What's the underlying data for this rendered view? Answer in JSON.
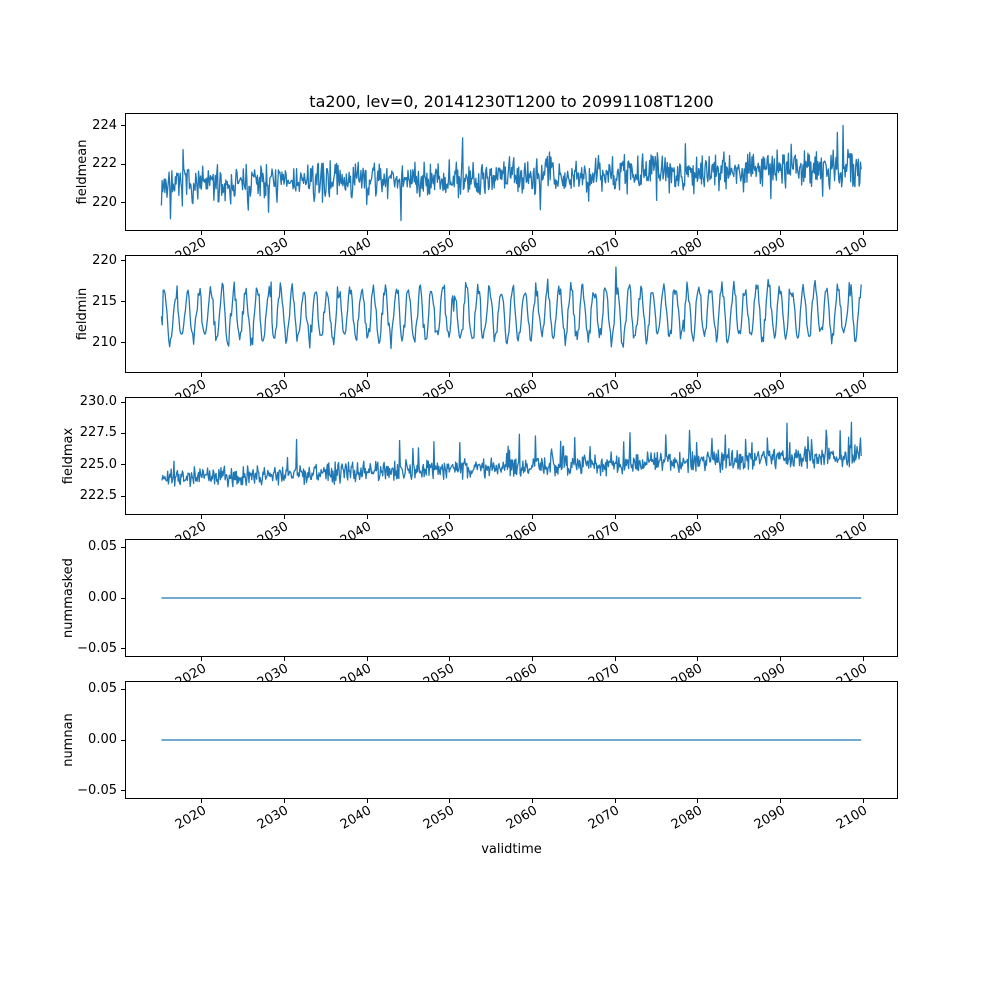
{
  "figure": {
    "title": "ta200, lev=0, 20141230T1200 to 20991108T1200",
    "xlabel": "validtime",
    "background_color": "#ffffff",
    "line_color": "#1f77b4"
  },
  "chart_data": [
    {
      "type": "line",
      "series_name": "fieldmean",
      "ylabel": "fieldmean",
      "ylim": [
        218.55,
        224.65
      ],
      "ytick_values": [
        220,
        222,
        224
      ],
      "ytick_labels": [
        "220",
        "222",
        "224"
      ],
      "xlim": [
        2010.7,
        2104.2
      ],
      "xtick_values": [
        2020,
        2030,
        2040,
        2050,
        2060,
        2070,
        2080,
        2090,
        2100
      ],
      "xtick_labels": [
        "2020",
        "2030",
        "2040",
        "2050",
        "2060",
        "2070",
        "2080",
        "2090",
        "2100"
      ],
      "x_start": 2014.99,
      "x_end": 2099.86,
      "summary": {
        "description": "Dense high-frequency noisy time series with slight upward trend",
        "approx_start_mean": 220.9,
        "approx_end_mean": 221.9,
        "approx_min": 218.8,
        "approx_max": 224.4
      },
      "generator": {
        "kind": "noisy",
        "seed": 7,
        "n": 1000,
        "base": 220.9,
        "trend": 0.95,
        "noise": 1.15,
        "spike": {
          "prob": 0.025,
          "amp": 1.2,
          "sign": 0
        },
        "clamp": [
          218.85,
          224.4
        ]
      }
    },
    {
      "type": "line",
      "series_name": "fieldmin",
      "ylabel": "fieldmin",
      "ylim": [
        206.3,
        220.7
      ],
      "ytick_values": [
        210,
        215,
        220
      ],
      "ytick_labels": [
        "210",
        "215",
        "220"
      ],
      "xlim": [
        2010.7,
        2104.2
      ],
      "xtick_values": [
        2020,
        2030,
        2040,
        2050,
        2060,
        2070,
        2080,
        2090,
        2100
      ],
      "xtick_labels": [
        "2020",
        "2030",
        "2040",
        "2050",
        "2060",
        "2070",
        "2080",
        "2090",
        "2100"
      ],
      "x_start": 2014.99,
      "x_end": 2099.86,
      "summary": {
        "description": "Regular seasonal-style oscillation between roughly 209 and 218",
        "approx_cycle_low": 209.5,
        "approx_cycle_high": 217.5,
        "approx_min": 207.3,
        "approx_max": 219.9
      },
      "generator": {
        "kind": "noisy",
        "seed": 13,
        "n": 760,
        "base": 213.3,
        "trend": 0.5,
        "osc": {
          "amp": 3.1,
          "period": 12.6
        },
        "noise": 1.3,
        "spike": {
          "prob": 0.015,
          "amp": 1.7,
          "sign": 0
        },
        "clamp": [
          207.2,
          220.1
        ]
      }
    },
    {
      "type": "line",
      "series_name": "fieldmax",
      "ylabel": "fieldmax",
      "ylim": [
        221.0,
        230.4
      ],
      "ytick_values": [
        222.5,
        225.0,
        227.5,
        230.0
      ],
      "ytick_labels": [
        "222.5",
        "225.0",
        "227.5",
        "230.0"
      ],
      "xlim": [
        2010.7,
        2104.2
      ],
      "xtick_values": [
        2020,
        2030,
        2040,
        2050,
        2060,
        2070,
        2080,
        2090,
        2100
      ],
      "xtick_labels": [
        "2020",
        "2030",
        "2040",
        "2050",
        "2060",
        "2070",
        "2080",
        "2090",
        "2100"
      ],
      "x_start": 2014.99,
      "x_end": 2099.86,
      "summary": {
        "description": "Dense noisy series with upward trend and positive spikes",
        "approx_start_mean": 223.9,
        "approx_end_mean": 225.8,
        "approx_min": 221.5,
        "approx_max": 230.0
      },
      "generator": {
        "kind": "noisy",
        "seed": 21,
        "n": 1000,
        "base": 223.9,
        "trend": 1.8,
        "noise": 1.0,
        "spike": {
          "prob": 0.04,
          "amp": 1.6,
          "sign": 1
        },
        "clamp": [
          221.4,
          230.0
        ]
      }
    },
    {
      "type": "line",
      "series_name": "nummasked",
      "ylabel": "nummasked",
      "ylim": [
        -0.058,
        0.058
      ],
      "ytick_values": [
        -0.05,
        0.0,
        0.05
      ],
      "ytick_labels": [
        "−0.05",
        "0.00",
        "0.05"
      ],
      "xlim": [
        2010.7,
        2104.2
      ],
      "xtick_values": [
        2020,
        2030,
        2040,
        2050,
        2060,
        2070,
        2080,
        2090,
        2100
      ],
      "xtick_labels": [
        "2020",
        "2030",
        "2040",
        "2050",
        "2060",
        "2070",
        "2080",
        "2090",
        "2100"
      ],
      "x_start": 2014.99,
      "x_end": 2099.86,
      "summary": {
        "description": "Constant value of 0 over the whole period",
        "constant_value": 0
      },
      "generator": {
        "kind": "constant",
        "value": 0
      }
    },
    {
      "type": "line",
      "series_name": "numnan",
      "ylabel": "numnan",
      "ylim": [
        -0.058,
        0.058
      ],
      "ytick_values": [
        -0.05,
        0.0,
        0.05
      ],
      "ytick_labels": [
        "−0.05",
        "0.00",
        "0.05"
      ],
      "xlim": [
        2010.7,
        2104.2
      ],
      "xtick_values": [
        2020,
        2030,
        2040,
        2050,
        2060,
        2070,
        2080,
        2090,
        2100
      ],
      "xtick_labels": [
        "2020",
        "2030",
        "2040",
        "2050",
        "2060",
        "2070",
        "2080",
        "2090",
        "2100"
      ],
      "x_start": 2014.99,
      "x_end": 2099.86,
      "summary": {
        "description": "Constant value of 0 over the whole period",
        "constant_value": 0
      },
      "generator": {
        "kind": "constant",
        "value": 0
      }
    }
  ]
}
